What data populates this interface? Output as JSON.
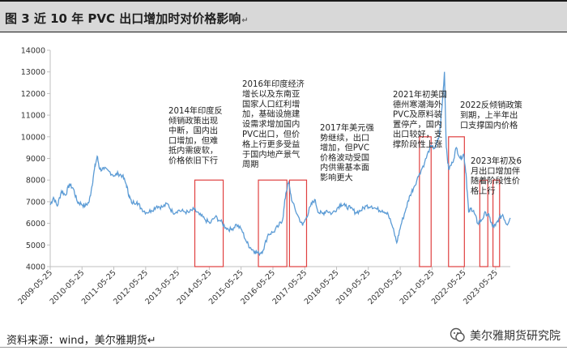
{
  "header": {
    "title": "图 3    近 10 年 PVC 出口增加时对价格影响",
    "title_mark": "↵"
  },
  "footer": {
    "source": "资料来源：wind，美尔雅期货↵",
    "logo_text": "美尔雅期货研究院",
    "logo_icon": "wechat-icon"
  },
  "colors": {
    "line": "#5b9bd5",
    "box": "#e04040",
    "axis": "#bfbfbf"
  },
  "chart_data": {
    "type": "line",
    "xlabel": "",
    "ylabel": "",
    "ylim": [
      4000,
      14000
    ],
    "y_ticks": [
      4000,
      5000,
      6000,
      7000,
      8000,
      9000,
      10000,
      11000,
      12000,
      13000,
      14000
    ],
    "x_range": [
      "2009-05-25",
      "2023-11-10"
    ],
    "x_ticks": [
      "2009-05-25",
      "2010-05-25",
      "2011-05-25",
      "2012-05-25",
      "2013-05-25",
      "2014-05-25",
      "2015-05-25",
      "2016-05-25",
      "2017-05-25",
      "2018-05-25",
      "2019-05-25",
      "2020-05-25",
      "2021-05-25",
      "2022-05-25",
      "2023-05-25"
    ],
    "series": [
      {
        "points": [
          [
            "2009-05-25",
            6850
          ],
          [
            "2009-07-01",
            7200
          ],
          [
            "2009-08-15",
            6800
          ],
          [
            "2009-10-01",
            7500
          ],
          [
            "2009-11-15",
            7300
          ],
          [
            "2010-01-01",
            7800
          ],
          [
            "2010-02-15",
            7600
          ],
          [
            "2010-04-01",
            7000
          ],
          [
            "2010-05-15",
            6900
          ],
          [
            "2010-07-01",
            6800
          ],
          [
            "2010-08-15",
            7000
          ],
          [
            "2010-09-15",
            7700
          ],
          [
            "2010-10-15",
            8500
          ],
          [
            "2010-11-15",
            9100
          ],
          [
            "2010-12-15",
            8500
          ],
          [
            "2011-02-01",
            8500
          ],
          [
            "2011-04-01",
            8400
          ],
          [
            "2011-06-01",
            8200
          ],
          [
            "2011-07-15",
            8300
          ],
          [
            "2011-09-01",
            8200
          ],
          [
            "2011-10-15",
            7800
          ],
          [
            "2011-11-15",
            7300
          ],
          [
            "2011-12-15",
            6950
          ],
          [
            "2012-02-15",
            7000
          ],
          [
            "2012-04-01",
            6700
          ],
          [
            "2012-06-01",
            6500
          ],
          [
            "2012-08-01",
            6600
          ],
          [
            "2012-10-01",
            6800
          ],
          [
            "2012-12-01",
            6750
          ],
          [
            "2013-02-01",
            6900
          ],
          [
            "2013-04-01",
            6500
          ],
          [
            "2013-06-01",
            6600
          ],
          [
            "2013-08-01",
            6550
          ],
          [
            "2013-10-01",
            6500
          ],
          [
            "2013-12-01",
            6650
          ],
          [
            "2014-02-01",
            6400
          ],
          [
            "2014-04-01",
            6200
          ],
          [
            "2014-06-01",
            6000
          ],
          [
            "2014-08-01",
            6300
          ],
          [
            "2014-10-01",
            6100
          ],
          [
            "2014-12-01",
            5800
          ],
          [
            "2015-02-01",
            5700
          ],
          [
            "2015-04-01",
            5950
          ],
          [
            "2015-06-01",
            5700
          ],
          [
            "2015-08-01",
            5100
          ],
          [
            "2015-09-15",
            4850
          ],
          [
            "2015-11-01",
            4700
          ],
          [
            "2015-12-15",
            4600
          ],
          [
            "2016-02-01",
            4750
          ],
          [
            "2016-04-01",
            5500
          ],
          [
            "2016-06-01",
            5600
          ],
          [
            "2016-08-01",
            5900
          ],
          [
            "2016-09-15",
            6200
          ],
          [
            "2016-10-20",
            7400
          ],
          [
            "2016-11-20",
            7900
          ],
          [
            "2017-01-01",
            7000
          ],
          [
            "2017-03-01",
            6400
          ],
          [
            "2017-05-01",
            5900
          ],
          [
            "2017-06-15",
            6300
          ],
          [
            "2017-08-01",
            6800
          ],
          [
            "2017-09-15",
            7100
          ],
          [
            "2017-11-01",
            6500
          ],
          [
            "2017-12-15",
            6450
          ],
          [
            "2018-02-01",
            6600
          ],
          [
            "2018-04-01",
            6450
          ],
          [
            "2018-06-01",
            6700
          ],
          [
            "2018-07-15",
            6900
          ],
          [
            "2018-09-01",
            6800
          ],
          [
            "2018-11-01",
            6700
          ],
          [
            "2019-01-01",
            6500
          ],
          [
            "2019-03-01",
            6600
          ],
          [
            "2019-05-01",
            6800
          ],
          [
            "2019-07-01",
            6800
          ],
          [
            "2019-09-01",
            6650
          ],
          [
            "2019-11-01",
            6600
          ],
          [
            "2020-01-01",
            6500
          ],
          [
            "2020-03-01",
            5800
          ],
          [
            "2020-04-15",
            5100
          ],
          [
            "2020-06-01",
            5900
          ],
          [
            "2020-08-01",
            6700
          ],
          [
            "2020-09-15",
            7300
          ],
          [
            "2020-11-01",
            7700
          ],
          [
            "2021-01-01",
            8300
          ],
          [
            "2021-03-01",
            8800
          ],
          [
            "2021-05-01",
            9500
          ],
          [
            "2021-07-01",
            9500
          ],
          [
            "2021-08-15",
            10000
          ],
          [
            "2021-09-20",
            11500
          ],
          [
            "2021-10-15",
            13000
          ],
          [
            "2021-11-05",
            9500
          ],
          [
            "2021-12-01",
            8500
          ],
          [
            "2022-01-15",
            8800
          ],
          [
            "2022-03-01",
            9500
          ],
          [
            "2022-04-15",
            9000
          ],
          [
            "2022-05-25",
            9200
          ],
          [
            "2022-06-20",
            8300
          ],
          [
            "2022-07-20",
            6500
          ],
          [
            "2022-08-20",
            6700
          ],
          [
            "2022-09-20",
            6500
          ],
          [
            "2022-11-01",
            6000
          ],
          [
            "2022-12-15",
            6150
          ],
          [
            "2023-02-01",
            6500
          ],
          [
            "2023-03-15",
            6300
          ],
          [
            "2023-04-20",
            5850
          ],
          [
            "2023-05-25",
            5900
          ],
          [
            "2023-07-01",
            6200
          ],
          [
            "2023-08-15",
            6400
          ],
          [
            "2023-10-01",
            5950
          ],
          [
            "2023-11-10",
            6250
          ]
        ]
      }
    ],
    "highlight_boxes": [
      {
        "x0": "2013-12-10",
        "x1": "2014-11-01",
        "y0": 4000,
        "y1": 8000
      },
      {
        "x0": "2015-12-10",
        "x1": "2016-11-01",
        "y0": 4000,
        "y1": 8000
      },
      {
        "x0": "2016-12-01",
        "x1": "2017-06-15",
        "y0": 4000,
        "y1": 8000
      },
      {
        "x0": "2021-01-01",
        "x1": "2021-05-15",
        "y0": 4000,
        "y1": 10000
      },
      {
        "x0": "2021-12-01",
        "x1": "2022-06-01",
        "y0": 4000,
        "y1": 10000
      },
      {
        "x0": "2022-11-25",
        "x1": "2023-02-25",
        "y0": 4000,
        "y1": 8000
      },
      {
        "x0": "2023-04-25",
        "x1": "2023-07-10",
        "y0": 4000,
        "y1": 8000
      }
    ],
    "annotations": [
      {
        "lines": [
          "2014年印度反",
          "倾销政策出现",
          "中断，国内出",
          "口增加，但难",
          "抵内需疲软，",
          "价格依旧下行"
        ]
      },
      {
        "lines": [
          "2016年印度经济",
          "增长以及东南亚",
          "国家人口红利增",
          "加，基础设施建",
          "设需求增加国内",
          "PVC出口，但价",
          "格上行更多受益",
          "于国内地产景气",
          "周期"
        ]
      },
      {
        "lines": [
          "2017年美元强",
          "势继续，出口",
          "增加，但PVC",
          "价格波动受国",
          "内供需基本面",
          "影响更大"
        ]
      },
      {
        "lines": [
          "2021年初美国",
          "德州寒潮海外",
          "PVC及原料装",
          "置停产，国内",
          "出口较好，支",
          "撑阶段性上涨"
        ]
      },
      {
        "lines": [
          "2022反倾销政策",
          "到期，上半年出",
          "口支撑国内价格"
        ]
      },
      {
        "lines": [
          "2023年初及6",
          "月出口增加伴",
          "随着阶段性价",
          "格上行"
        ]
      }
    ]
  }
}
